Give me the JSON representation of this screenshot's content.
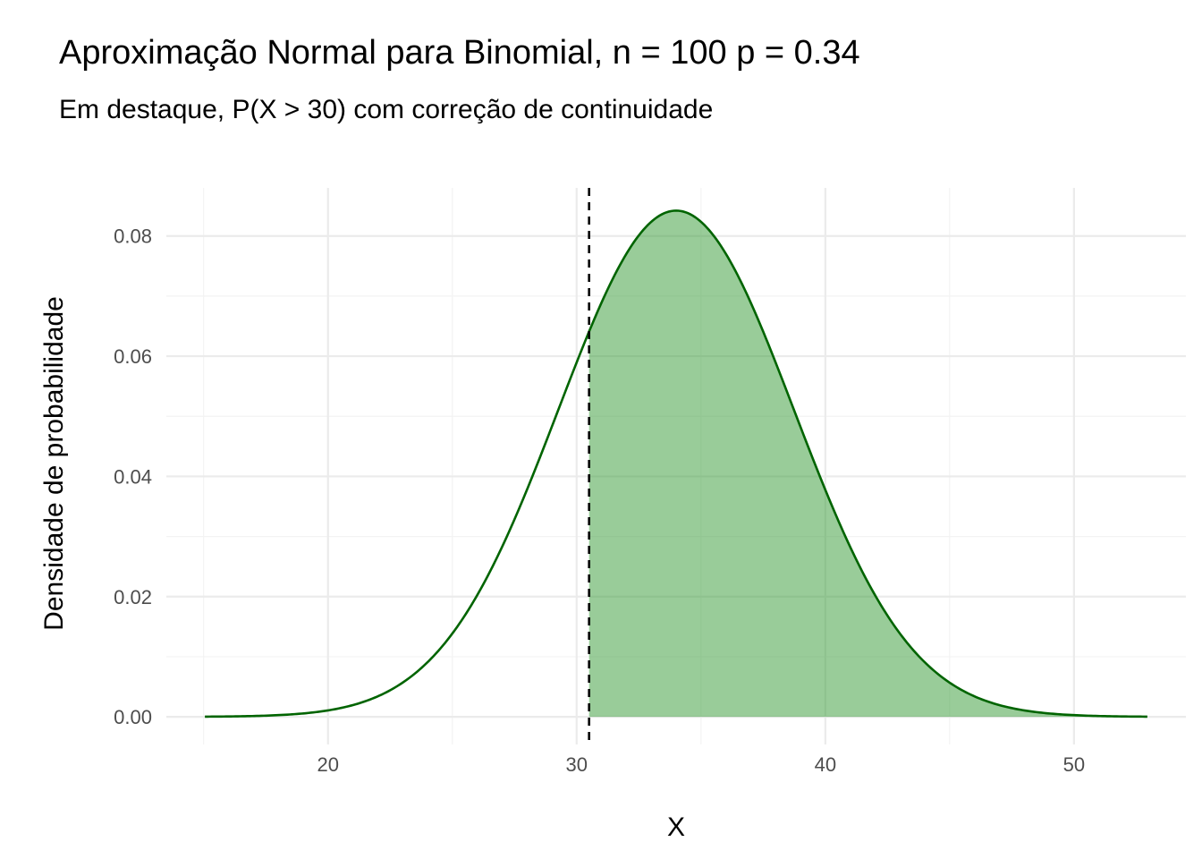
{
  "chart_data": {
    "type": "area",
    "title": "Aproximação Normal para Binomial, n = 100 p = 0.34",
    "subtitle": "Em destaque, P(X > 30) com correção de continuidade",
    "xlabel": "X",
    "ylabel": "Densidade de probabilidade",
    "xlim": [
      13.5,
      54.5
    ],
    "ylim": [
      -0.0046,
      0.088
    ],
    "x_ticks": [
      20,
      30,
      40,
      50
    ],
    "x_tick_labels": [
      "20",
      "30",
      "40",
      "50"
    ],
    "y_ticks": [
      0,
      0.02,
      0.04,
      0.06,
      0.08
    ],
    "y_tick_labels": [
      "0.00",
      "0.02",
      "0.04",
      "0.06",
      "0.08"
    ],
    "grid": true,
    "distribution": {
      "name": "normal",
      "mean": 34,
      "sd": 4.737,
      "n": 100,
      "p": 0.34
    },
    "curve_x_range": [
      15.05,
      52.95
    ],
    "shaded_from": 30.5,
    "cutoff_line": 30.5,
    "colors": {
      "line": "#006400",
      "fill": "#339933",
      "fill_opacity": 0.5,
      "cutoff": "#000000",
      "grid_major": "#ebebeb",
      "grid_minor": "#f3f3f3"
    }
  }
}
